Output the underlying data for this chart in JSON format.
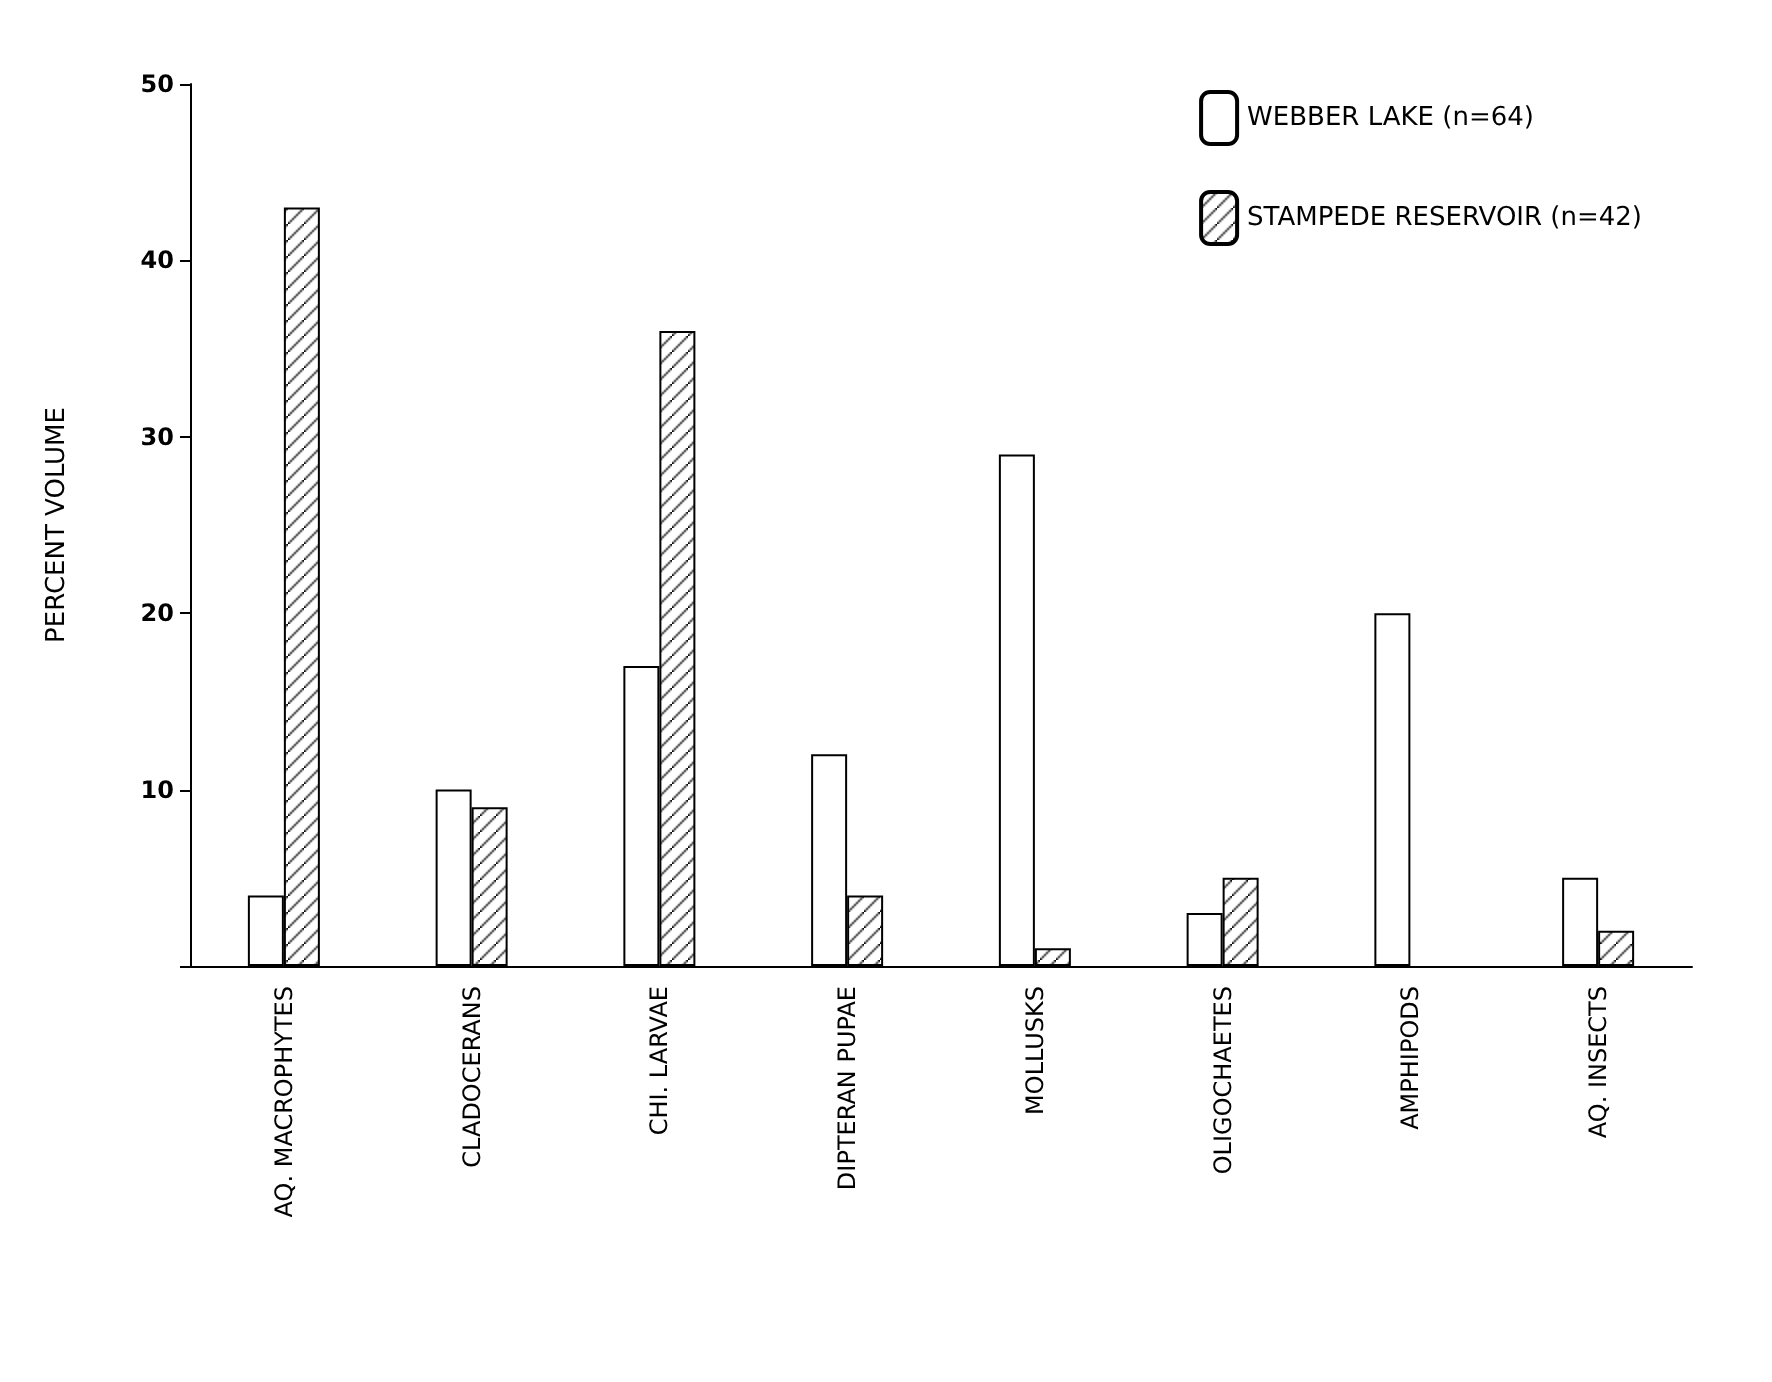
{
  "chart_data": {
    "type": "bar",
    "ylabel": "PERCENT VOLUME",
    "categories": [
      "AQ. MACROPHYTES",
      "CLADOCERANS",
      "CHI. LARVAE",
      "DIPTERAN PUPAE",
      "MOLLUSKS",
      "OLIGOCHAETES",
      "AMPHIPODS",
      "AQ. INSECTS"
    ],
    "series": [
      {
        "name": "WEBBER LAKE (n=64)",
        "color": "#ffffff",
        "values": [
          4,
          10,
          17,
          12,
          29,
          3,
          20,
          5
        ]
      },
      {
        "name": "STAMPEDE RESERVOIR (n=42)",
        "color": "#000000",
        "values": [
          43,
          9,
          36,
          4,
          1,
          5,
          null,
          2
        ]
      }
    ],
    "ylim": [
      0,
      50
    ],
    "yticks": [
      {
        "value": 0,
        "label": null
      },
      10,
      20,
      30,
      40,
      50
    ],
    "grid": false,
    "legend": "top right"
  }
}
